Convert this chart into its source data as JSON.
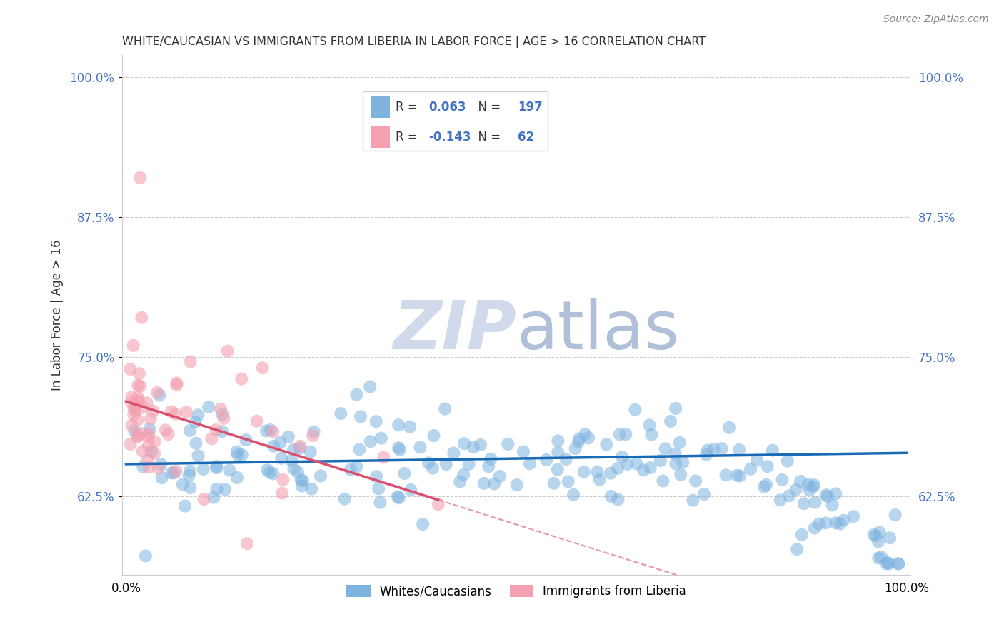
{
  "title": "WHITE/CAUCASIAN VS IMMIGRANTS FROM LIBERIA IN LABOR FORCE | AGE > 16 CORRELATION CHART",
  "source": "Source: ZipAtlas.com",
  "ylabel": "In Labor Force | Age > 16",
  "xlim": [
    -0.005,
    1.005
  ],
  "ylim": [
    0.555,
    1.02
  ],
  "yticks": [
    0.625,
    0.75,
    0.875,
    1.0
  ],
  "ytick_labels": [
    "62.5%",
    "75.0%",
    "87.5%",
    "100.0%"
  ],
  "xtick_labels": [
    "0.0%",
    "100.0%"
  ],
  "blue_R": 0.063,
  "blue_N": 197,
  "pink_R": -0.143,
  "pink_N": 62,
  "blue_color": "#7eb3e0",
  "pink_color": "#f4a0b0",
  "blue_trend_color": "#1a6bb5",
  "pink_trend_color": "#d94f6e",
  "background_color": "#ffffff",
  "grid_color": "#cccccc",
  "watermark_color": "#d0daea",
  "legend_label_blue": "Whites/Caucasians",
  "legend_label_pink": "Immigrants from Liberia",
  "title_color": "#333333",
  "source_color": "#888888",
  "tick_color": "#4472c4",
  "ylabel_color": "#333333"
}
